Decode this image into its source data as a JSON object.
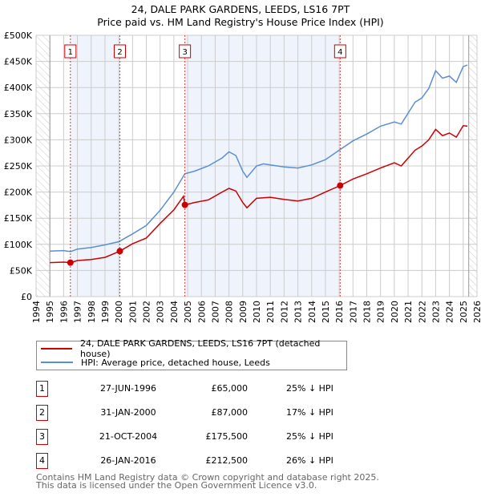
{
  "title_line1": "24, DALE PARK GARDENS, LEEDS, LS16 7PT",
  "title_line2": "Price paid vs. HM Land Registry's House Price Index (HPI)",
  "colors": {
    "property": "#cc0000",
    "hpi": "#5b8fd0",
    "shade": "#eef3fc",
    "grid": "#cccccc"
  },
  "chart_data": {
    "type": "line",
    "xlim": [
      1994,
      2026
    ],
    "ylim": [
      0,
      500000
    ],
    "x_ticks": [
      "1994",
      "1995",
      "1996",
      "1997",
      "1998",
      "1999",
      "2000",
      "2001",
      "2002",
      "2003",
      "2004",
      "2005",
      "2006",
      "2007",
      "2008",
      "2009",
      "2010",
      "2011",
      "2012",
      "2013",
      "2014",
      "2015",
      "2016",
      "2017",
      "2018",
      "2019",
      "2020",
      "2021",
      "2022",
      "2023",
      "2024",
      "2025",
      "2026"
    ],
    "y_ticks": [
      {
        "v": 0,
        "label": "£0"
      },
      {
        "v": 50000,
        "label": "£50K"
      },
      {
        "v": 100000,
        "label": "£100K"
      },
      {
        "v": 150000,
        "label": "£150K"
      },
      {
        "v": 200000,
        "label": "£200K"
      },
      {
        "v": 250000,
        "label": "£250K"
      },
      {
        "v": 300000,
        "label": "£300K"
      },
      {
        "v": 350000,
        "label": "£350K"
      },
      {
        "v": 400000,
        "label": "£400K"
      },
      {
        "v": 450000,
        "label": "£450K"
      },
      {
        "v": 500000,
        "label": "£500K"
      }
    ],
    "series": [
      {
        "name": "24, DALE PARK GARDENS, LEEDS, LS16 7PT (detached house)",
        "color": "#cc0000",
        "x": [
          1995,
          1996,
          1996.5,
          1997,
          1998,
          1999,
          2000.08,
          2001,
          2002,
          2003,
          2004,
          2004.7,
          2004.8,
          2005.5,
          2006.5,
          2007.5,
          2008,
          2008.5,
          2009,
          2009.3,
          2010,
          2011,
          2012,
          2013,
          2014,
          2015,
          2016.07,
          2017,
          2018,
          2019,
          2020,
          2020.5,
          2021.5,
          2022,
          2022.5,
          2023,
          2023.5,
          2024,
          2024.5,
          2025,
          2025.3
        ],
        "y": [
          65000,
          66000,
          65000,
          69000,
          71000,
          75000,
          87000,
          101000,
          112000,
          140000,
          166000,
          192000,
          175500,
          180000,
          185000,
          200000,
          207000,
          202000,
          180000,
          170000,
          188000,
          190000,
          186000,
          183000,
          188000,
          200000,
          212500,
          225000,
          235000,
          246000,
          256000,
          250000,
          280000,
          288000,
          300000,
          320000,
          308000,
          313000,
          305000,
          327000,
          326000
        ]
      },
      {
        "name": "HPI: Average price, detached house, Leeds",
        "color": "#5b8fd0",
        "x": [
          1995,
          1996,
          1996.5,
          1997,
          1998,
          1999,
          2000,
          2001,
          2002,
          2003,
          2004,
          2004.8,
          2005.5,
          2006.5,
          2007.5,
          2008,
          2008.5,
          2009,
          2009.3,
          2010,
          2010.5,
          2011,
          2012,
          2013,
          2014,
          2015,
          2016,
          2017,
          2018,
          2019,
          2020,
          2020.5,
          2021.5,
          2022,
          2022.5,
          2023,
          2023.5,
          2024,
          2024.5,
          2025,
          2025.3
        ],
        "y": [
          87000,
          88000,
          86000,
          91000,
          94000,
          99000,
          105000,
          120000,
          136000,
          165000,
          200000,
          235000,
          240000,
          250000,
          265000,
          277000,
          270000,
          240000,
          228000,
          250000,
          254000,
          252000,
          248000,
          246000,
          252000,
          262000,
          280000,
          298000,
          311000,
          326000,
          334000,
          330000,
          372000,
          380000,
          398000,
          432000,
          418000,
          422000,
          410000,
          440000,
          443000
        ]
      }
    ],
    "sales": [
      {
        "n": "1",
        "x": 1996.49,
        "y": 65000
      },
      {
        "n": "2",
        "x": 2000.08,
        "y": 87000
      },
      {
        "n": "3",
        "x": 2004.8,
        "y": 175500
      },
      {
        "n": "4",
        "x": 2016.07,
        "y": 212500
      }
    ],
    "shaded": [
      [
        1996.49,
        2000.08
      ],
      [
        2004.8,
        2016.07
      ]
    ],
    "hatched": [
      [
        1994,
        1995
      ],
      [
        2025.4,
        2026
      ]
    ]
  },
  "legend": {
    "property": "24, DALE PARK GARDENS, LEEDS, LS16 7PT (detached house)",
    "hpi": "HPI: Average price, detached house, Leeds"
  },
  "transactions": [
    {
      "n": "1",
      "date": "27-JUN-1996",
      "price": "£65,000",
      "hpi": "25% ↓ HPI"
    },
    {
      "n": "2",
      "date": "31-JAN-2000",
      "price": "£87,000",
      "hpi": "17% ↓ HPI"
    },
    {
      "n": "3",
      "date": "21-OCT-2004",
      "price": "£175,500",
      "hpi": "25% ↓ HPI"
    },
    {
      "n": "4",
      "date": "26-JAN-2016",
      "price": "£212,500",
      "hpi": "26% ↓ HPI"
    }
  ],
  "footer": {
    "line1": "Contains HM Land Registry data © Crown copyright and database right 2025.",
    "line2": "This data is licensed under the Open Government Licence v3.0."
  }
}
